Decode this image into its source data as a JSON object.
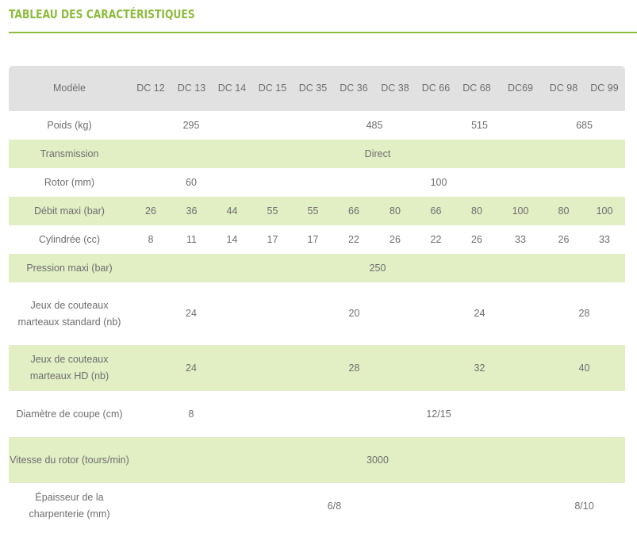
{
  "page_title": "TABLEAU DES CARACTÉRISTIQUES",
  "header": {
    "label": "Modèle",
    "models": [
      "DC 12",
      "DC 13",
      "DC 14",
      "DC 15",
      "DC 35",
      "DC 36",
      "DC 38",
      "DC 66",
      "DC 68",
      "DC69",
      "DC 98",
      "DC 99"
    ]
  },
  "rows": [
    {
      "label": "Poids (kg)",
      "cells": [
        {
          "span": 3,
          "text": "295"
        },
        {
          "span": 2,
          "text": ""
        },
        {
          "span": 2,
          "text": "485"
        },
        {
          "span": 3,
          "text": "515"
        },
        {
          "span": 2,
          "text": "685"
        }
      ]
    },
    {
      "label": "Transmission",
      "cells": [
        {
          "span": 12,
          "text": "Direct"
        }
      ]
    },
    {
      "label": "Rotor (mm)",
      "cells": [
        {
          "span": 3,
          "text": "60"
        },
        {
          "span": 9,
          "text": "100"
        }
      ]
    },
    {
      "label": "Débit maxi (bar)",
      "cells": [
        {
          "span": 1,
          "text": "26"
        },
        {
          "span": 1,
          "text": "36"
        },
        {
          "span": 1,
          "text": "44"
        },
        {
          "span": 1,
          "text": "55"
        },
        {
          "span": 1,
          "text": "55"
        },
        {
          "span": 1,
          "text": "66"
        },
        {
          "span": 1,
          "text": "80"
        },
        {
          "span": 1,
          "text": "66"
        },
        {
          "span": 1,
          "text": "80"
        },
        {
          "span": 1,
          "text": "100"
        },
        {
          "span": 1,
          "text": "80"
        },
        {
          "span": 1,
          "text": "100"
        }
      ]
    },
    {
      "label": "Cylindrée (cc)",
      "cells": [
        {
          "span": 1,
          "text": "8"
        },
        {
          "span": 1,
          "text": "11"
        },
        {
          "span": 1,
          "text": "14"
        },
        {
          "span": 1,
          "text": "17"
        },
        {
          "span": 1,
          "text": "17"
        },
        {
          "span": 1,
          "text": "22"
        },
        {
          "span": 1,
          "text": "26"
        },
        {
          "span": 1,
          "text": "22"
        },
        {
          "span": 1,
          "text": "26"
        },
        {
          "span": 1,
          "text": "33"
        },
        {
          "span": 1,
          "text": "26"
        },
        {
          "span": 1,
          "text": "33"
        }
      ]
    },
    {
      "label": "Pression maxi (bar)",
      "cells": [
        {
          "span": 12,
          "text": "250"
        }
      ]
    },
    {
      "label": "Jeux de couteaux marteaux standard (nb)",
      "cells": [
        {
          "span": 3,
          "text": "24"
        },
        {
          "span": 1,
          "text": ""
        },
        {
          "span": 3,
          "text": "20"
        },
        {
          "span": 3,
          "text": "24"
        },
        {
          "span": 2,
          "text": "28"
        }
      ]
    },
    {
      "label": "Jeux de couteaux marteaux HD (nb)",
      "cells": [
        {
          "span": 3,
          "text": "24"
        },
        {
          "span": 1,
          "text": ""
        },
        {
          "span": 3,
          "text": "28"
        },
        {
          "span": 3,
          "text": "32"
        },
        {
          "span": 2,
          "text": "40"
        }
      ]
    },
    {
      "label": "Diamètre de coupe (cm)",
      "cells": [
        {
          "span": 3,
          "text": "8"
        },
        {
          "span": 9,
          "text": "12/15"
        }
      ]
    },
    {
      "label": "Vitesse du rotor (tours/min)",
      "cells": [
        {
          "span": 12,
          "text": "3000"
        }
      ]
    },
    {
      "label": "Épaisseur de la charpenterie (mm)",
      "cells": [
        {
          "span": 1,
          "text": ""
        },
        {
          "span": 8,
          "text": "6/8"
        },
        {
          "span": 1,
          "text": ""
        },
        {
          "span": 2,
          "text": "8/10"
        }
      ]
    }
  ],
  "colors": {
    "accent": "#8dbb3d",
    "header_bg": "#e1e1e1",
    "row_green": "#e2eec4",
    "text": "#6e6e6e"
  }
}
